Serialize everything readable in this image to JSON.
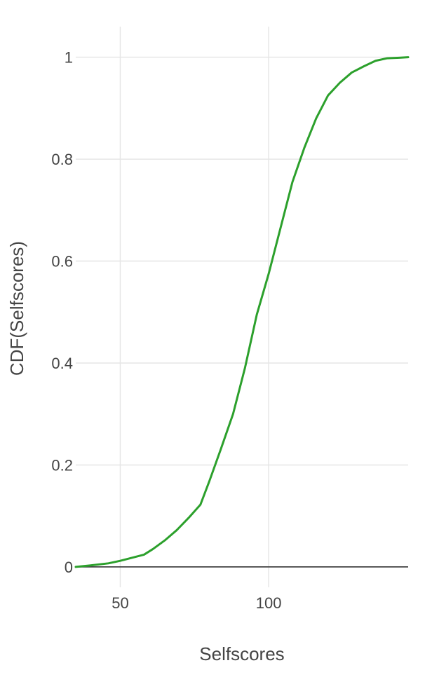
{
  "chart_data": {
    "type": "line",
    "title": "",
    "xlabel": "Selfscores",
    "ylabel": "CDF(Selfscores)",
    "xlim": [
      35,
      147
    ],
    "ylim": [
      -0.04,
      1.06
    ],
    "x_ticks": [
      50,
      100
    ],
    "y_ticks": [
      0,
      0.2,
      0.4,
      0.6,
      0.8,
      1
    ],
    "y_tick_labels": [
      "0",
      "0.2",
      "0.4",
      "0.6",
      "0.8",
      "1"
    ],
    "x_tick_labels": [
      "50",
      "100"
    ],
    "grid": true,
    "legend": "none",
    "series": [
      {
        "color": "#2ca02c",
        "x": [
          35,
          40,
          46,
          50,
          54,
          58,
          61,
          65,
          69,
          73,
          77,
          80,
          84,
          88,
          92,
          96,
          100,
          104,
          108,
          112,
          116,
          120,
          124,
          128,
          132,
          136,
          140,
          144,
          147
        ],
        "y": [
          0.0,
          0.003,
          0.007,
          0.012,
          0.018,
          0.024,
          0.035,
          0.052,
          0.072,
          0.096,
          0.122,
          0.168,
          0.233,
          0.3,
          0.39,
          0.495,
          0.575,
          0.665,
          0.755,
          0.822,
          0.88,
          0.925,
          0.95,
          0.97,
          0.982,
          0.993,
          0.998,
          0.999,
          1.0
        ]
      }
    ]
  }
}
